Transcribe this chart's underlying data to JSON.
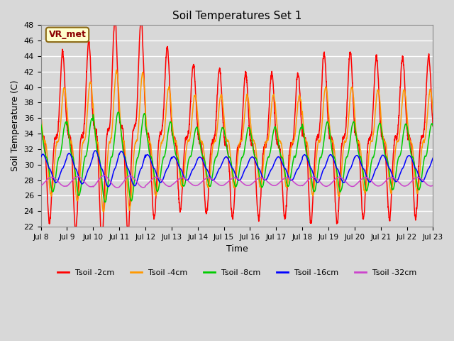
{
  "title": "Soil Temperatures Set 1",
  "xlabel": "Time",
  "ylabel": "Soil Temperature (C)",
  "ylim": [
    22,
    48
  ],
  "xlim_days": [
    0,
    15
  ],
  "annotation": "VR_met",
  "background_color": "#d8d8d8",
  "plot_bg_color": "#d8d8d8",
  "grid_color": "#ffffff",
  "series": [
    {
      "label": "Tsoil -2cm",
      "color": "#ff0000",
      "base_mean": 34.0,
      "amplitude": 11.0,
      "phase_hr": 14.0,
      "depth_factor": 1.0
    },
    {
      "label": "Tsoil -4cm",
      "color": "#ff9900",
      "base_mean": 33.0,
      "amplitude": 7.0,
      "phase_hr": 15.5,
      "depth_factor": 0.9
    },
    {
      "label": "Tsoil -8cm",
      "color": "#00cc00",
      "base_mean": 31.0,
      "amplitude": 4.5,
      "phase_hr": 17.0,
      "depth_factor": 0.8
    },
    {
      "label": "Tsoil -16cm",
      "color": "#0000ff",
      "base_mean": 29.5,
      "amplitude": 1.8,
      "phase_hr": 20.0,
      "depth_factor": 0.7
    },
    {
      "label": "Tsoil -32cm",
      "color": "#cc44cc",
      "base_mean": 27.8,
      "amplitude": 0.6,
      "phase_hr": 4.0,
      "depth_factor": 0.6
    }
  ],
  "xtick_labels": [
    "Jul 8",
    "Jul 9",
    "Jul 10",
    "Jul 11",
    "Jul 12",
    "Jul 13",
    "Jul 14",
    "Jul 15",
    "Jul 16",
    "Jul 17",
    "Jul 18",
    "Jul 19",
    "Jul 20",
    "Jul 21",
    "Jul 22",
    "Jul 23"
  ],
  "xtick_positions": [
    0,
    1,
    2,
    3,
    4,
    5,
    6,
    7,
    8,
    9,
    10,
    11,
    12,
    13,
    14,
    15
  ],
  "ytick_positions": [
    22,
    24,
    26,
    28,
    30,
    32,
    34,
    36,
    38,
    40,
    42,
    44,
    46,
    48
  ],
  "linewidth": 1.1,
  "n_points": 3600
}
